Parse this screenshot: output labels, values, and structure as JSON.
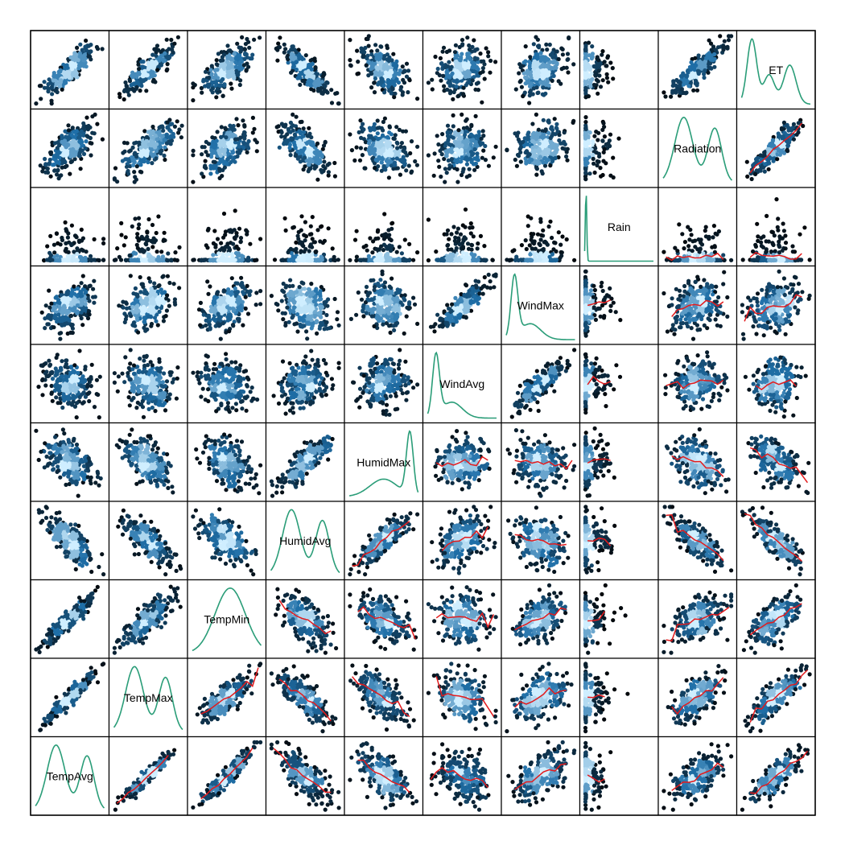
{
  "chart_data": {
    "type": "scatter",
    "variables": [
      "TempAvg",
      "TempMax",
      "TempMin",
      "HumidAvg",
      "HumidMax",
      "WindAvg",
      "WindMax",
      "Rain",
      "Radiation",
      "ET"
    ],
    "diagonal": "density",
    "lower_panels": "hexbin scatter with red loess smooth",
    "upper_panels": "hexbin scatter",
    "axes_labels_shown": false,
    "grid": false,
    "legend": "none",
    "correlations": {
      "TempAvg": {
        "TempMax": 0.95,
        "TempMin": 0.92,
        "HumidAvg": -0.72,
        "HumidMax": -0.5,
        "WindAvg": -0.3,
        "WindMax": 0.45,
        "Rain": 0.0,
        "Radiation": 0.6,
        "ET": 0.8
      },
      "TempMax": {
        "TempMin": 0.8,
        "HumidAvg": -0.75,
        "HumidMax": -0.55,
        "WindAvg": -0.3,
        "WindMax": 0.4,
        "Rain": 0.0,
        "Radiation": 0.65,
        "ET": 0.8
      },
      "TempMin": {
        "HumidAvg": -0.55,
        "HumidMax": -0.4,
        "WindAvg": -0.2,
        "WindMax": 0.45,
        "Rain": 0.05,
        "Radiation": 0.45,
        "ET": 0.65
      },
      "HumidAvg": {
        "HumidMax": 0.8,
        "WindAvg": 0.3,
        "WindMax": -0.25,
        "Rain": 0.3,
        "Radiation": -0.7,
        "ET": -0.82
      },
      "HumidMax": {
        "WindAvg": 0.1,
        "WindMax": 0.0,
        "Rain": 0.2,
        "Radiation": -0.4,
        "ET": -0.5
      },
      "WindAvg": {
        "WindMax": 0.85,
        "Rain": -0.1,
        "Radiation": 0.1,
        "ET": 0.2
      },
      "WindMax": {
        "Rain": 0.05,
        "Radiation": 0.2,
        "ET": 0.3
      },
      "Rain": {
        "Radiation": -0.15,
        "ET": -0.15
      },
      "Radiation": {
        "ET": 0.85
      }
    },
    "density_shapes": {
      "TempAvg": "bimodal",
      "TempMax": "bimodal",
      "TempMin": "broad",
      "HumidAvg": "bimodal",
      "HumidMax": "left-skewed",
      "WindAvg": "right-skewed",
      "WindMax": "right-skewed",
      "Rain": "spike-at-zero",
      "Radiation": "bimodal",
      "ET": "right-skewed-bimodal"
    },
    "colors": {
      "hex_low": "#000000",
      "hex_mid": "#1f6fa8",
      "hex_high": "#cfeeff",
      "density_line": "#2a9d78",
      "smooth_line": "#e31a1c",
      "border": "#000000"
    }
  }
}
